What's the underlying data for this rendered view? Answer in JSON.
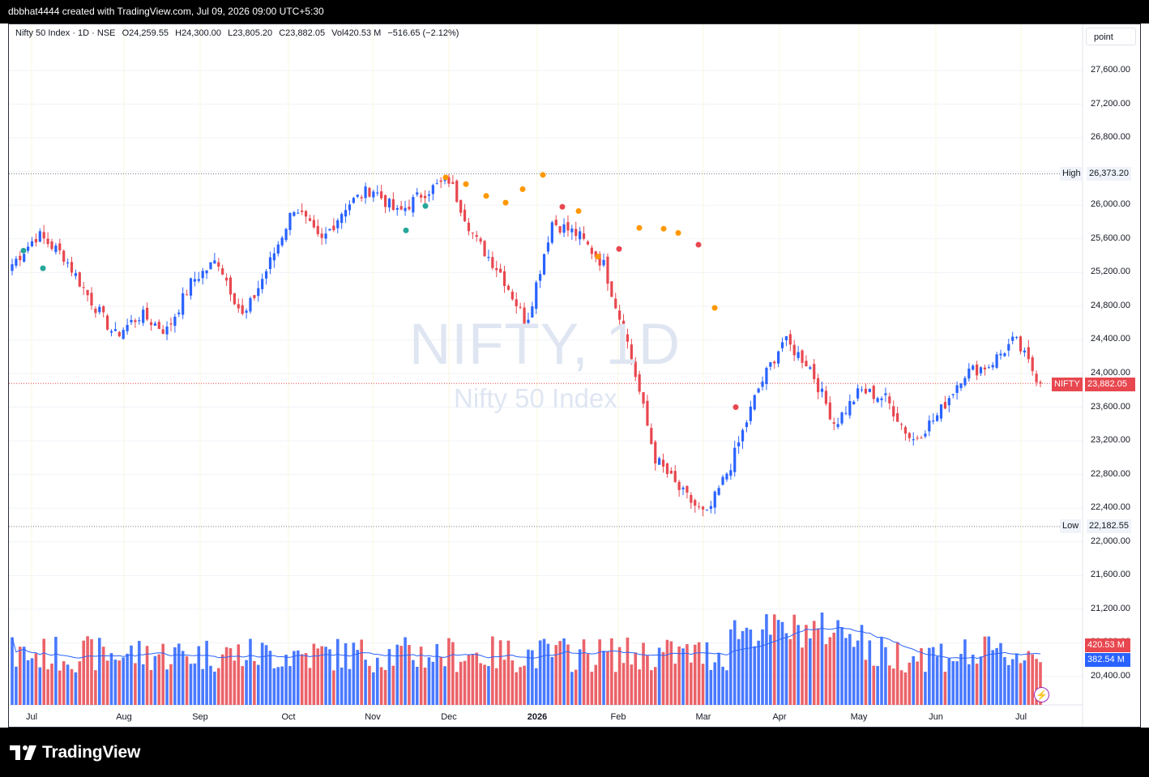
{
  "header": {
    "credit": "dbbhat4444 created with TradingView.com, Jul 09, 2026 09:00 UTC+5:30"
  },
  "legend": {
    "symbol": "Nifty 50 Index · 1D · NSE",
    "open": "O24,259.55",
    "high": "H24,300.00",
    "low": "L23,805.20",
    "close": "C23,882.05",
    "volume": "Vol420.53 M",
    "change": "−516.65 (−2.12%)"
  },
  "toolbar": {
    "scale_button": "point"
  },
  "watermark": {
    "ticker": "NIFTY, 1D",
    "name": "Nifty 50 Index"
  },
  "price_axis": {
    "labels": [
      "27,600.00",
      "27,200.00",
      "26,800.00",
      "26,400.00",
      "26,000.00",
      "25,600.00",
      "25,200.00",
      "24,800.00",
      "24,400.00",
      "24,000.00",
      "23,600.00",
      "23,200.00",
      "22,800.00",
      "22,400.00",
      "22,000.00",
      "21,600.00",
      "21,200.00",
      "20,800.00",
      "20,400.00"
    ]
  },
  "time_axis": {
    "labels": [
      "Jul",
      "Aug",
      "Sep",
      "Oct",
      "Nov",
      "Dec",
      "2026",
      "Feb",
      "Mar",
      "Apr",
      "May",
      "Jun",
      "Jul"
    ]
  },
  "markers": {
    "high_label": "High",
    "high_value": "26,373.20",
    "low_label": "Low",
    "low_value": "22,182.55",
    "last_symbol": "NIFTY",
    "last_price": "23,882.05",
    "volume_value": "420.53 M",
    "volume_ma_value": "382.54 M"
  },
  "colors": {
    "up": "#2962ff",
    "down": "#e8474f",
    "volume_ma": "#2962ff",
    "grid": "#f0f3fa",
    "month_grid": "#fbf7dc",
    "dot_orange": "#ff9800",
    "dot_green": "#26a69a",
    "dot_red": "#e8474f"
  },
  "chart_data": {
    "type": "candlestick",
    "symbol": "NIFTY",
    "interval": "1D",
    "exchange": "NSE",
    "y_range": [
      20200,
      27900
    ],
    "high": 26373.2,
    "low": 22182.55,
    "last_close": 23882.05,
    "path_keypoints": [
      {
        "date": "Jul",
        "close": 25300
      },
      {
        "date": "Jul",
        "close": 25650
      },
      {
        "date": "Jul",
        "close": 25400
      },
      {
        "date": "Aug",
        "close": 24900
      },
      {
        "date": "Aug",
        "close": 24450
      },
      {
        "date": "Sep",
        "close": 24700
      },
      {
        "date": "Sep",
        "close": 24500
      },
      {
        "date": "Sep",
        "close": 25100
      },
      {
        "date": "Oct",
        "close": 25350
      },
      {
        "date": "Oct",
        "close": 24650
      },
      {
        "date": "Oct",
        "close": 25300
      },
      {
        "date": "Oct",
        "close": 26000
      },
      {
        "date": "Nov",
        "close": 25550
      },
      {
        "date": "Nov",
        "close": 26000
      },
      {
        "date": "Dec",
        "close": 26200
      },
      {
        "date": "Dec",
        "close": 25900
      },
      {
        "date": "Dec",
        "close": 26150
      },
      {
        "date": "2026",
        "close": 26300
      },
      {
        "date": "Jan",
        "close": 25600
      },
      {
        "date": "Jan",
        "close": 25200
      },
      {
        "date": "Feb",
        "close": 24600
      },
      {
        "date": "Feb",
        "close": 25800
      },
      {
        "date": "Feb",
        "close": 25650
      },
      {
        "date": "Mar",
        "close": 25300
      },
      {
        "date": "Mar",
        "close": 24300
      },
      {
        "date": "Mar",
        "close": 23000
      },
      {
        "date": "Mar",
        "close": 22600
      },
      {
        "date": "Apr",
        "close": 22300
      },
      {
        "date": "Apr",
        "close": 22950
      },
      {
        "date": "Apr",
        "close": 23800
      },
      {
        "date": "Apr",
        "close": 24400
      },
      {
        "date": "May",
        "close": 24100
      },
      {
        "date": "May",
        "close": 23400
      },
      {
        "date": "May",
        "close": 23800
      },
      {
        "date": "Jun",
        "close": 23700
      },
      {
        "date": "Jun",
        "close": 23200
      },
      {
        "date": "Jun",
        "close": 23500
      },
      {
        "date": "Jun",
        "close": 24000
      },
      {
        "date": "Jul",
        "close": 24100
      },
      {
        "date": "Jul",
        "close": 24400
      },
      {
        "date": "Jul",
        "close": 23882.05
      }
    ],
    "volume": {
      "last": 420.53,
      "ma": 382.54,
      "unit": "M"
    }
  }
}
